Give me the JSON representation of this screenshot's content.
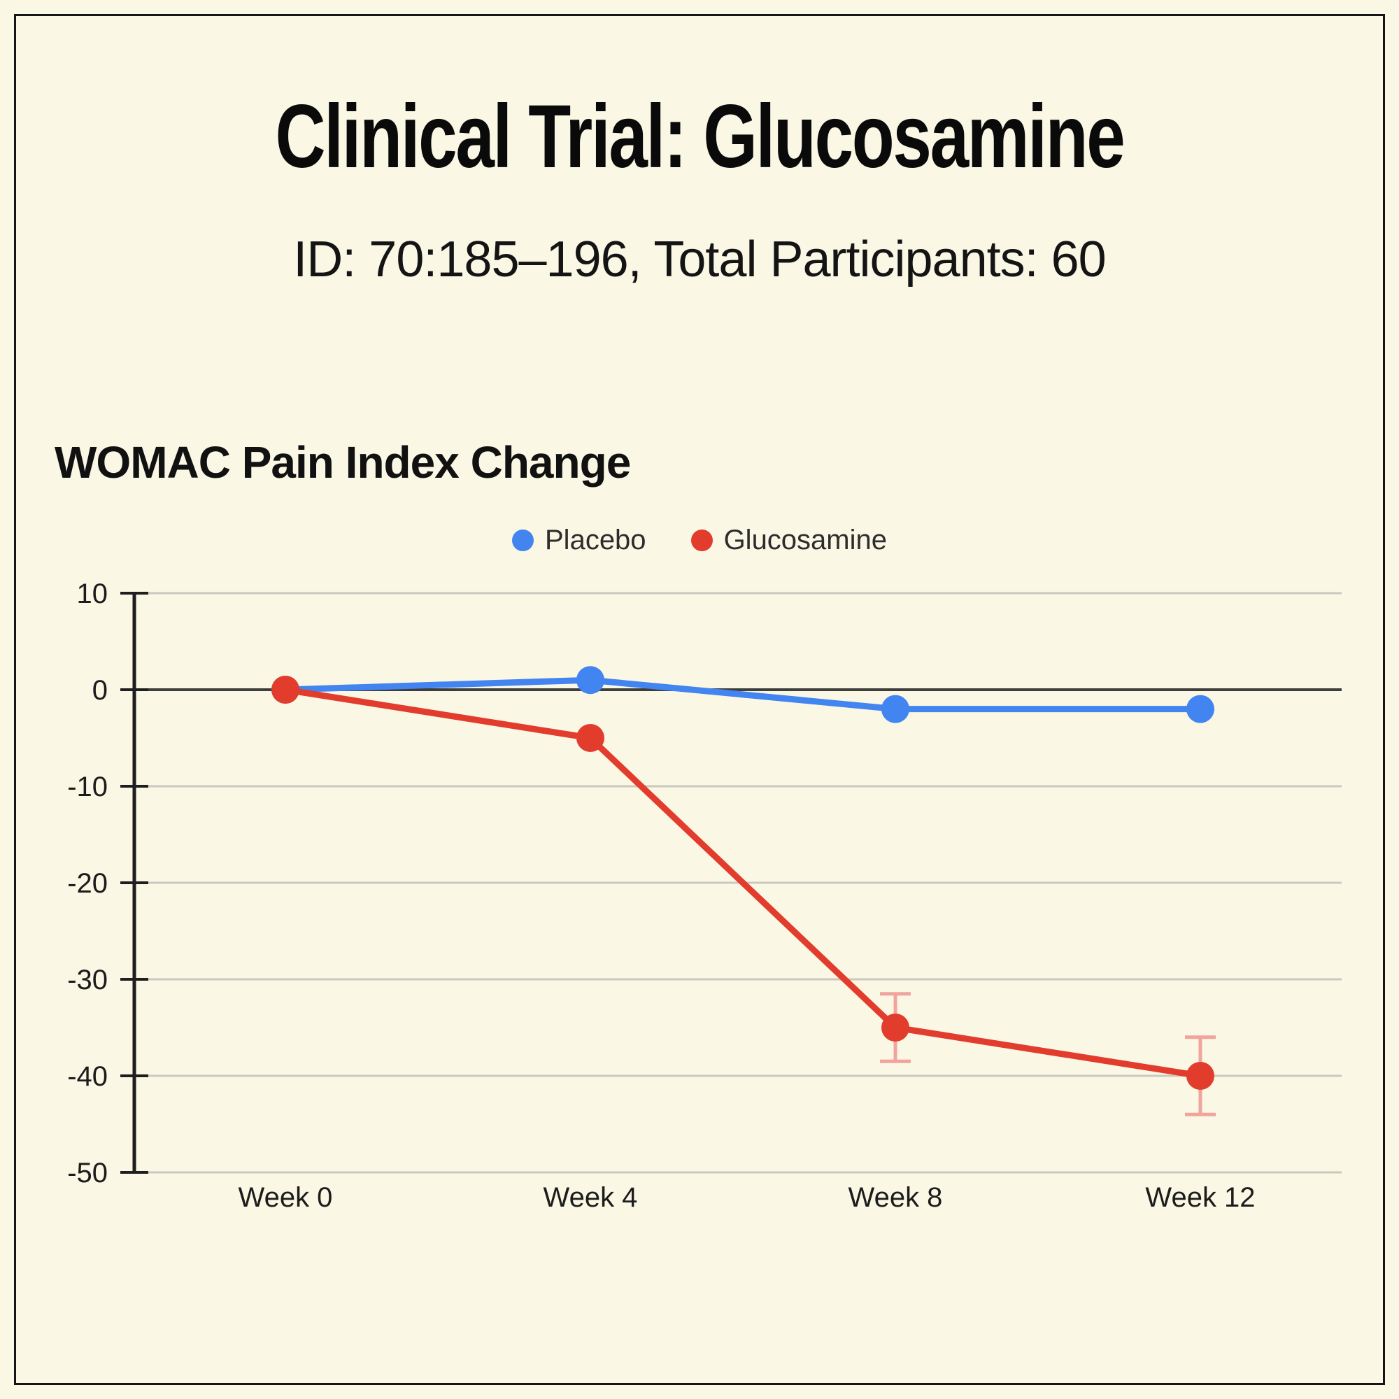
{
  "style": {
    "background": "#FBF7E5",
    "frame_border": "#151515",
    "text": "#111111"
  },
  "header": {
    "title": "Clinical Trial: Glucosamine",
    "subtitle": "ID: 70:185–196, Total Participants: 60"
  },
  "chart_data": {
    "type": "line",
    "title": "WOMAC Pain Index Change",
    "categories": [
      "Week 0",
      "Week 4",
      "Week 8",
      "Week 12"
    ],
    "series": [
      {
        "name": "Placebo",
        "color": "#4284F0",
        "values": [
          0,
          1,
          -2,
          -2
        ]
      },
      {
        "name": "Glucosamine",
        "color": "#E23C2D",
        "values": [
          0,
          -5,
          -35,
          -40
        ],
        "error_bars": [
          {
            "index": 2,
            "value": -35,
            "plus": 3.5,
            "minus": 3.5
          },
          {
            "index": 3,
            "value": -40,
            "plus": 4,
            "minus": 4
          }
        ],
        "error_bar_color": "#F1A49D"
      }
    ],
    "y_ticks": [
      10,
      0,
      -10,
      -20,
      -30,
      -40,
      -50
    ],
    "ylim": [
      -50,
      10
    ],
    "grid": true,
    "gridline_color": "#CBC8C0",
    "zero_line_color": "#3D3D3B",
    "axis_color": "#1E1E1E",
    "tick_label_color": "#1C1C1C",
    "legend_position": "top"
  }
}
